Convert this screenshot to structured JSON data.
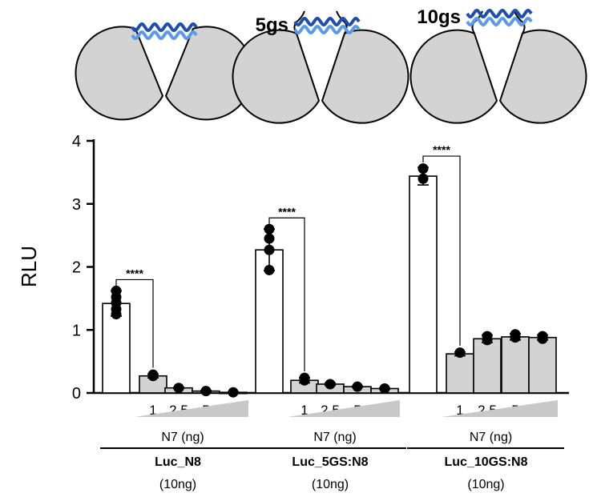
{
  "chart_data": {
    "type": "bar",
    "ylabel": "RLU",
    "ylim": [
      0,
      4
    ],
    "yticks": [
      0,
      1,
      2,
      3,
      4
    ],
    "grid": false,
    "titration_label": "N7 (ng)",
    "groups": [
      {
        "name": "Luc_N8",
        "sublabel": "(10ng)",
        "linker_label": "",
        "significance": "****",
        "bars": [
          {
            "label": "",
            "value": 1.42,
            "error": 0.2,
            "points": [
              1.62,
              1.52,
              1.43,
              1.33,
              1.25
            ],
            "fill": "#ffffff"
          },
          {
            "label": "1",
            "value": 0.27,
            "error": 0.03,
            "points": [
              0.29,
              0.27
            ],
            "fill": "#d3d3d3"
          },
          {
            "label": "2,5",
            "value": 0.08,
            "error": 0.01,
            "points": [
              0.08
            ],
            "fill": "#d3d3d3"
          },
          {
            "label": "5",
            "value": 0.03,
            "error": 0.01,
            "points": [
              0.03
            ],
            "fill": "#d3d3d3"
          },
          {
            "label": "10",
            "value": 0.01,
            "error": 0.01,
            "points": [
              0.01
            ],
            "fill": "#d3d3d3"
          }
        ]
      },
      {
        "name": "Luc_5GS:N8",
        "sublabel": "(10ng)",
        "linker_label": "5gs",
        "significance": "****",
        "bars": [
          {
            "label": "",
            "value": 2.27,
            "error": 0.33,
            "points": [
              2.6,
              2.45,
              2.27,
              1.95
            ],
            "fill": "#ffffff"
          },
          {
            "label": "1",
            "value": 0.2,
            "error": 0.04,
            "points": [
              0.24,
              0.2
            ],
            "fill": "#d3d3d3"
          },
          {
            "label": "2,5",
            "value": 0.14,
            "error": 0.02,
            "points": [
              0.14
            ],
            "fill": "#d3d3d3"
          },
          {
            "label": "5",
            "value": 0.1,
            "error": 0.01,
            "points": [
              0.1
            ],
            "fill": "#d3d3d3"
          },
          {
            "label": "10",
            "value": 0.07,
            "error": 0.01,
            "points": [
              0.07
            ],
            "fill": "#d3d3d3"
          }
        ]
      },
      {
        "name": "Luc_10GS:N8",
        "sublabel": "(10ng)",
        "linker_label": "10gs",
        "significance": "****",
        "bars": [
          {
            "label": "",
            "value": 3.44,
            "error": 0.14,
            "points": [
              3.56,
              3.4
            ],
            "fill": "#ffffff"
          },
          {
            "label": "1",
            "value": 0.62,
            "error": 0.03,
            "points": [
              0.64
            ],
            "fill": "#d3d3d3"
          },
          {
            "label": "2,5",
            "value": 0.86,
            "error": 0.06,
            "points": [
              0.9,
              0.84
            ],
            "fill": "#d3d3d3"
          },
          {
            "label": "5",
            "value": 0.89,
            "error": 0.05,
            "points": [
              0.93,
              0.88
            ],
            "fill": "#d3d3d3"
          },
          {
            "label": "10",
            "value": 0.88,
            "error": 0.04,
            "points": [
              0.9,
              0.86
            ],
            "fill": "#d3d3d3"
          }
        ]
      }
    ]
  },
  "colors": {
    "helix_dark": "#1f4fa8",
    "helix_light": "#5b9ae8",
    "lobe_fill": "#d3d3d3",
    "bar_ctrl": "#ffffff",
    "bar_titration": "#d3d3d3",
    "point": "#000000"
  }
}
